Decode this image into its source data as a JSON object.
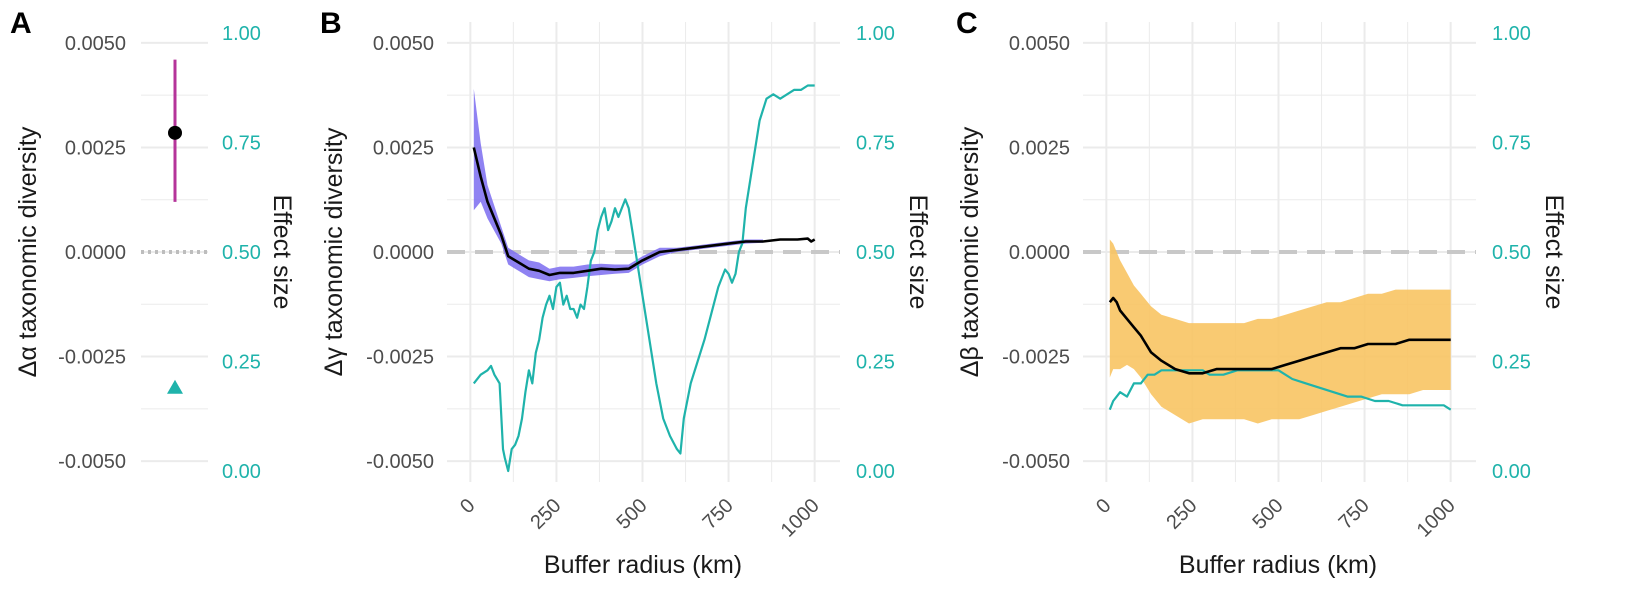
{
  "colors": {
    "effect": "#1fb3ab",
    "gamma_ribbon": "#7b6cf0",
    "beta_ribbon": "#f8c463",
    "mean_line": "#000000",
    "alpha_errorbar": "#b5349a",
    "zero_line": "#c8c8c8",
    "grid": "#ebebeb"
  },
  "chart_data": [
    {
      "panel": "A",
      "type": "scatter",
      "ylabel": "Δα taxonomic diversity",
      "y2label": "Effect size",
      "ylim": [
        -0.0055,
        0.0055
      ],
      "y2lim": [
        -0.025,
        1.025
      ],
      "yticks": [
        "0.0050",
        "0.0025",
        "0.0000",
        "-0.0025",
        "-0.0050"
      ],
      "y2ticks": [
        "1.00",
        "0.75",
        "0.50",
        "0.25",
        "0.00"
      ],
      "estimate": 0.00285,
      "error_low": 0.0012,
      "error_high": 0.0046,
      "effect_size": 0.19,
      "zero_line": "dotted",
      "grid": true
    },
    {
      "panel": "B",
      "type": "line",
      "xlabel": "Buffer radius (km)",
      "ylabel": "Δγ taxonomic diversity",
      "y2label": "Effect size",
      "xlim": [
        -30,
        1030
      ],
      "ylim": [
        -0.0055,
        0.0055
      ],
      "y2lim": [
        -0.025,
        1.025
      ],
      "xticks": [
        "0",
        "250",
        "500",
        "750",
        "1000"
      ],
      "yticks": [
        "0.0050",
        "0.0025",
        "0.0000",
        "-0.0025",
        "-0.0050"
      ],
      "y2ticks": [
        "1.00",
        "0.75",
        "0.50",
        "0.25",
        "0.00"
      ],
      "grid": true,
      "mean": {
        "x": [
          10,
          30,
          50,
          70,
          90,
          110,
          130,
          150,
          170,
          200,
          230,
          260,
          300,
          340,
          380,
          420,
          460,
          500,
          550,
          600,
          650,
          700,
          750,
          800,
          850,
          900,
          950,
          980,
          990,
          1000
        ],
        "y": [
          0.0025,
          0.0018,
          0.0012,
          0.0008,
          0.0004,
          -0.0001,
          -0.0002,
          -0.0003,
          -0.0004,
          -0.00045,
          -0.00055,
          -0.0005,
          -0.0005,
          -0.00045,
          -0.0004,
          -0.00042,
          -0.0004,
          -0.0002,
          0.0,
          5e-05,
          0.0001,
          0.00015,
          0.0002,
          0.00025,
          0.00025,
          0.0003,
          0.0003,
          0.00032,
          0.00025,
          0.0003
        ]
      },
      "ribbon": {
        "x": [
          10,
          30,
          50,
          70,
          90,
          110,
          130,
          150,
          170,
          200,
          230,
          260,
          300,
          340,
          380,
          420,
          460,
          500,
          550,
          600,
          650,
          700,
          750,
          800,
          850
        ],
        "lower": [
          0.001,
          0.0012,
          0.0008,
          0.0005,
          0.0002,
          -0.0003,
          -0.0004,
          -0.0005,
          -0.0006,
          -0.00065,
          -0.0007,
          -0.00065,
          -0.00062,
          -0.00058,
          -0.00055,
          -0.00052,
          -0.0005,
          -0.0003,
          -0.0001,
          0.0,
          5e-05,
          0.0001,
          0.00015,
          0.0002,
          0.00022
        ],
        "upper": [
          0.0039,
          0.0026,
          0.0016,
          0.0011,
          0.0006,
          0.0001,
          0.0,
          -0.0001,
          -0.0002,
          -0.00025,
          -0.0004,
          -0.00035,
          -0.00035,
          -0.0003,
          -0.00028,
          -0.0003,
          -0.0003,
          -0.0001,
          0.0001,
          0.0001,
          0.00015,
          0.0002,
          0.00025,
          0.0003,
          0.0003
        ]
      },
      "effect_size": {
        "x": [
          10,
          30,
          50,
          60,
          70,
          85,
          95,
          100,
          110,
          120,
          130,
          140,
          150,
          160,
          170,
          180,
          190,
          200,
          210,
          220,
          230,
          240,
          250,
          260,
          270,
          280,
          290,
          300,
          310,
          320,
          330,
          340,
          350,
          360,
          370,
          380,
          390,
          400,
          410,
          420,
          430,
          440,
          450,
          460,
          470,
          480,
          500,
          520,
          540,
          560,
          580,
          600,
          610,
          620,
          640,
          660,
          680,
          700,
          720,
          740,
          750,
          760,
          770,
          780,
          790,
          800,
          820,
          840,
          860,
          880,
          900,
          920,
          940,
          960,
          980,
          1000
        ],
        "y": [
          0.2,
          0.22,
          0.23,
          0.24,
          0.22,
          0.2,
          0.05,
          0.03,
          0.0,
          0.05,
          0.06,
          0.08,
          0.12,
          0.18,
          0.23,
          0.2,
          0.27,
          0.3,
          0.35,
          0.38,
          0.4,
          0.37,
          0.42,
          0.43,
          0.38,
          0.4,
          0.37,
          0.37,
          0.35,
          0.38,
          0.37,
          0.42,
          0.48,
          0.5,
          0.55,
          0.58,
          0.6,
          0.55,
          0.57,
          0.6,
          0.58,
          0.6,
          0.62,
          0.6,
          0.55,
          0.5,
          0.4,
          0.3,
          0.2,
          0.12,
          0.08,
          0.05,
          0.04,
          0.12,
          0.2,
          0.25,
          0.3,
          0.36,
          0.42,
          0.46,
          0.45,
          0.43,
          0.45,
          0.5,
          0.52,
          0.6,
          0.7,
          0.8,
          0.85,
          0.86,
          0.85,
          0.86,
          0.87,
          0.87,
          0.88,
          0.88
        ]
      }
    },
    {
      "panel": "C",
      "type": "line",
      "xlabel": "Buffer radius (km)",
      "ylabel": "Δβ taxonomic diversity",
      "y2label": "Effect size",
      "xlim": [
        -30,
        1030
      ],
      "ylim": [
        -0.0055,
        0.0055
      ],
      "y2lim": [
        -0.025,
        1.025
      ],
      "xticks": [
        "0",
        "250",
        "500",
        "750",
        "1000"
      ],
      "yticks": [
        "0.0050",
        "0.0025",
        "0.0000",
        "-0.0025",
        "-0.0050"
      ],
      "y2ticks": [
        "1.00",
        "0.75",
        "0.50",
        "0.25",
        "0.00"
      ],
      "grid": true,
      "mean": {
        "x": [
          10,
          20,
          30,
          40,
          60,
          80,
          100,
          130,
          160,
          200,
          240,
          280,
          320,
          360,
          400,
          440,
          480,
          520,
          560,
          600,
          640,
          680,
          720,
          760,
          800,
          840,
          880,
          920,
          960,
          1000
        ],
        "y": [
          -0.0012,
          -0.0011,
          -0.0012,
          -0.0014,
          -0.0016,
          -0.0018,
          -0.002,
          -0.0024,
          -0.0026,
          -0.0028,
          -0.0029,
          -0.0029,
          -0.0028,
          -0.0028,
          -0.0028,
          -0.0028,
          -0.0028,
          -0.0027,
          -0.0026,
          -0.0025,
          -0.0024,
          -0.0023,
          -0.0023,
          -0.0022,
          -0.0022,
          -0.0022,
          -0.0021,
          -0.0021,
          -0.0021,
          -0.0021
        ]
      },
      "ribbon": {
        "x": [
          10,
          20,
          40,
          60,
          80,
          100,
          130,
          160,
          200,
          240,
          280,
          320,
          360,
          400,
          440,
          480,
          520,
          560,
          600,
          640,
          680,
          720,
          760,
          800,
          840,
          880,
          920,
          960,
          1000
        ],
        "lower": [
          -0.003,
          -0.0028,
          -0.0028,
          -0.0027,
          -0.0028,
          -0.003,
          -0.0034,
          -0.0037,
          -0.0039,
          -0.0041,
          -0.004,
          -0.004,
          -0.004,
          -0.004,
          -0.0041,
          -0.004,
          -0.004,
          -0.004,
          -0.0039,
          -0.0038,
          -0.0037,
          -0.0036,
          -0.0035,
          -0.0034,
          -0.0034,
          -0.0034,
          -0.0033,
          -0.0033,
          -0.0033
        ],
        "upper": [
          0.0003,
          0.0002,
          -0.0002,
          -0.0005,
          -0.0008,
          -0.001,
          -0.0013,
          -0.0015,
          -0.0016,
          -0.0017,
          -0.0017,
          -0.0017,
          -0.0017,
          -0.0017,
          -0.0016,
          -0.0016,
          -0.0015,
          -0.0014,
          -0.0013,
          -0.0012,
          -0.0012,
          -0.0011,
          -0.001,
          -0.001,
          -0.0009,
          -0.0009,
          -0.0009,
          -0.0009,
          -0.0009
        ]
      },
      "effect_size": {
        "x": [
          10,
          20,
          40,
          60,
          80,
          100,
          120,
          140,
          160,
          180,
          200,
          220,
          240,
          260,
          280,
          300,
          340,
          380,
          420,
          460,
          500,
          540,
          580,
          620,
          660,
          700,
          740,
          780,
          820,
          860,
          900,
          940,
          980,
          1000
        ],
        "y": [
          0.14,
          0.16,
          0.18,
          0.17,
          0.2,
          0.2,
          0.22,
          0.22,
          0.23,
          0.23,
          0.23,
          0.23,
          0.23,
          0.23,
          0.23,
          0.22,
          0.22,
          0.23,
          0.23,
          0.23,
          0.23,
          0.21,
          0.2,
          0.19,
          0.18,
          0.17,
          0.17,
          0.16,
          0.16,
          0.15,
          0.15,
          0.15,
          0.15,
          0.14
        ]
      }
    }
  ]
}
